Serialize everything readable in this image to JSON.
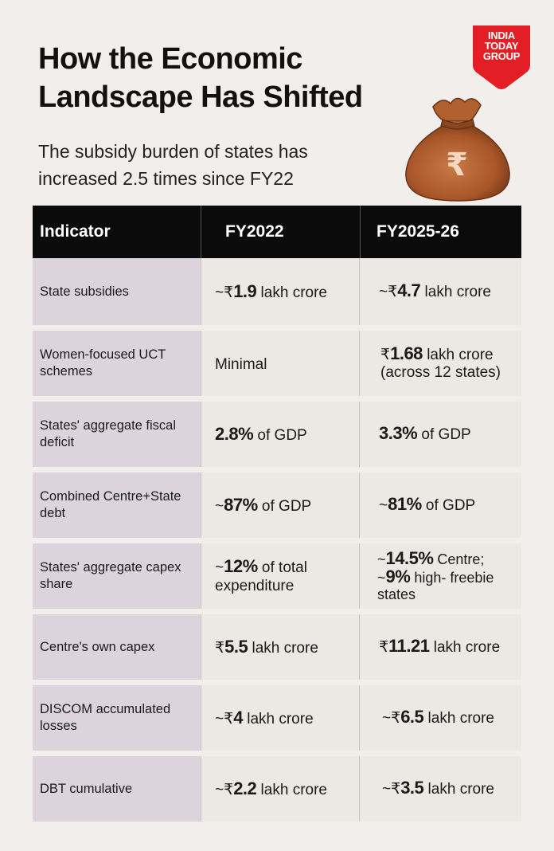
{
  "header": {
    "title": "How the Economic Landscape Has Shifted",
    "subtitle": "The subsidy burden of states has increased 2.5 times since FY22"
  },
  "logo": {
    "line1": "INDIA",
    "line2": "TODAY",
    "line3": "GROUP",
    "color": "#e31e24"
  },
  "illustration": {
    "icon": "rupee-money-bag-icon",
    "symbol": "₹",
    "color": "#a9572a"
  },
  "table": {
    "columns": [
      "Indicator",
      "FY2022",
      "FY2025-26"
    ],
    "rows": [
      {
        "indicator": "State subsidies",
        "fy2022": {
          "pre": "~₹",
          "bold": "1.9",
          "post": " lakh crore"
        },
        "fy2026": {
          "pre": "~₹",
          "bold": "4.7",
          "post": " lakh crore"
        }
      },
      {
        "indicator": "Women-focused UCT schemes",
        "fy2022": {
          "pre": "Minimal",
          "bold": "",
          "post": ""
        },
        "fy2026": {
          "pre": "₹",
          "bold": "1.68",
          "post": " lakh crore (across 12 states)"
        }
      },
      {
        "indicator": "States' aggregate fiscal deficit",
        "fy2022": {
          "pre": "",
          "bold": "2.8%",
          "post": " of GDP"
        },
        "fy2026": {
          "pre": "",
          "bold": "3.3%",
          "post": " of GDP"
        }
      },
      {
        "indicator": "Combined Centre+State debt",
        "fy2022": {
          "pre": "~",
          "bold": "87%",
          "post": " of GDP"
        },
        "fy2026": {
          "pre": "~",
          "bold": "81%",
          "post": " of GDP"
        }
      },
      {
        "indicator": "States' aggregate capex share",
        "fy2022": {
          "pre": "~",
          "bold": "12%",
          "post": " of total expenditure"
        },
        "fy2026": {
          "pre": "~",
          "bold": "14.5%",
          "post": " Centre;",
          "pre2": "~",
          "bold2": "9%",
          "post2": " high- freebie states"
        }
      },
      {
        "indicator": "Centre's own capex",
        "fy2022": {
          "pre": "₹",
          "bold": "5.5",
          "post": " lakh crore"
        },
        "fy2026": {
          "pre": "₹",
          "bold": "11.21",
          "post": " lakh crore"
        }
      },
      {
        "indicator": "DISCOM accumulated losses",
        "fy2022": {
          "pre": "~₹",
          "bold": "4",
          "post": " lakh crore"
        },
        "fy2026": {
          "pre": "~₹",
          "bold": "6.5",
          "post": " lakh crore"
        }
      },
      {
        "indicator": "DBT cumulative",
        "fy2022": {
          "pre": "~₹",
          "bold": "2.2",
          "post": " lakh crore"
        },
        "fy2026": {
          "pre": "~₹",
          "bold": "3.5",
          "post": " lakh crore"
        }
      }
    ]
  }
}
